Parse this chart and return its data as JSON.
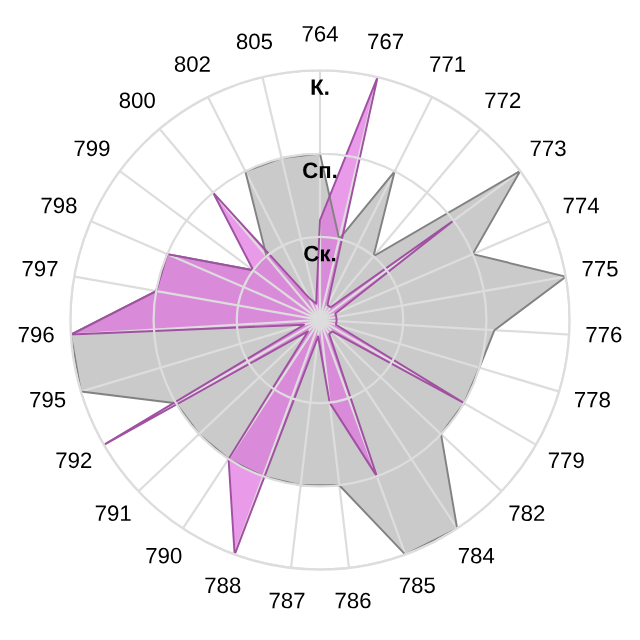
{
  "chart_data": {
    "type": "radar",
    "categories": [
      "764",
      "767",
      "771",
      "772",
      "773",
      "774",
      "775",
      "776",
      "778",
      "779",
      "782",
      "784",
      "785",
      "786",
      "787",
      "788",
      "790",
      "791",
      "792",
      "795",
      "796",
      "797",
      "798",
      "799",
      "800",
      "802",
      "805"
    ],
    "ylim": [
      0,
      3
    ],
    "yticks": [
      {
        "value": 1,
        "label": "Ск."
      },
      {
        "value": 2,
        "label": "Сп."
      },
      {
        "value": 3,
        "label": "К."
      }
    ],
    "grid": true,
    "series": [
      {
        "color": "#b4b4b4",
        "values": [
          2.0,
          1.0,
          2.0,
          1.0,
          3.0,
          2.0,
          3.0,
          2.1,
          2.0,
          2.0,
          2.0,
          3.0,
          3.0,
          2.0,
          2.0,
          2.0,
          2.0,
          2.0,
          2.0,
          3.0,
          3.0,
          2.0,
          2.0,
          1.0,
          1.0,
          2.0,
          2.0
        ]
      },
      {
        "color": "#e070e0",
        "values": [
          1.2,
          3.0,
          0.2,
          0.2,
          2.0,
          0.2,
          0.2,
          0.2,
          0.2,
          2.0,
          0.2,
          0.2,
          2.0,
          1.0,
          0.2,
          3.0,
          2.0,
          0.2,
          3.0,
          0.2,
          3.0,
          2.0,
          2.0,
          1.0,
          2.0,
          0.3,
          0.2
        ]
      }
    ]
  }
}
